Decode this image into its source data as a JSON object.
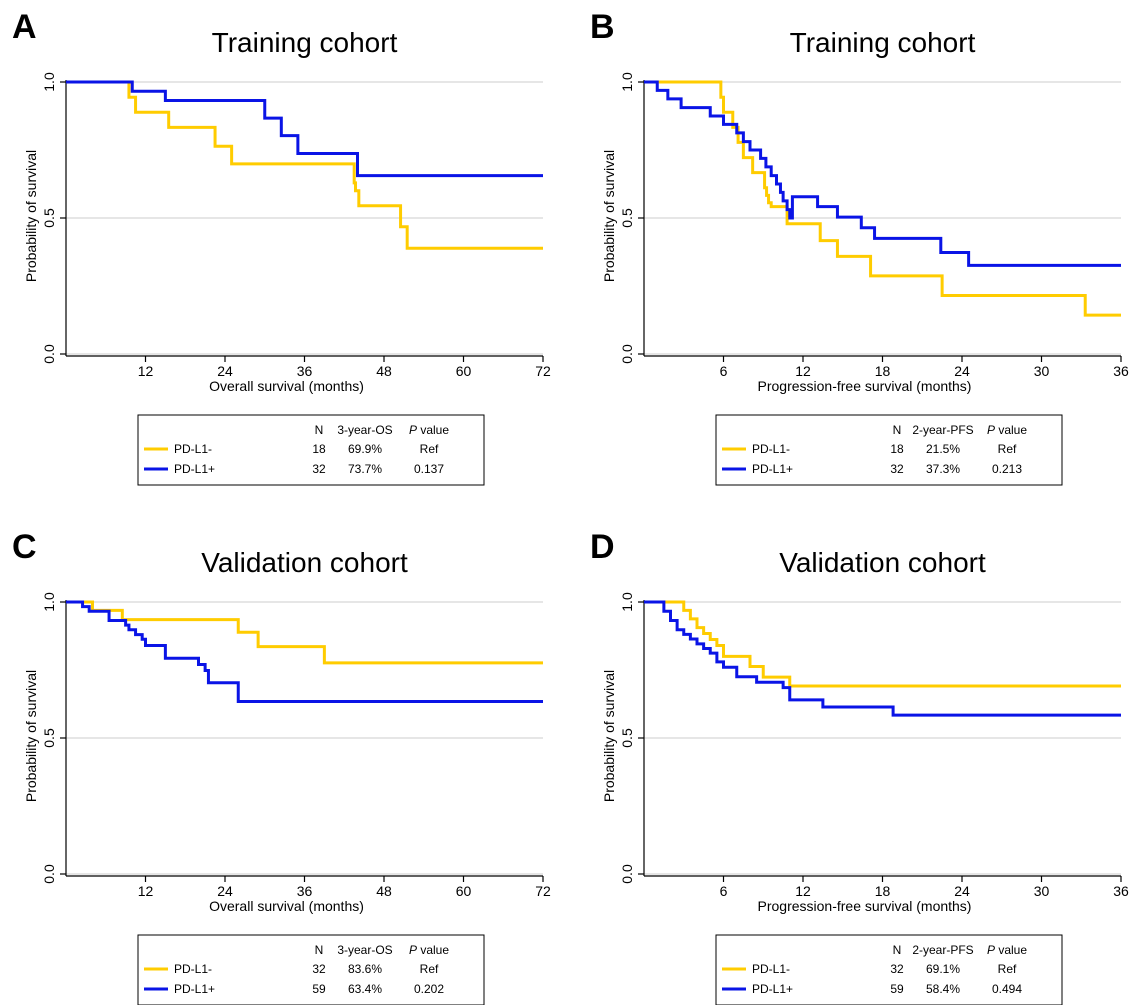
{
  "colors": {
    "negative": "#FFCC00",
    "positive": "#0A14E6",
    "gridline": "#cccccc",
    "axis": "#000000"
  },
  "chart_data": [
    {
      "panel": "A",
      "type": "line",
      "title": "Training cohort",
      "xlabel": "Overall survival (months)",
      "ylabel": "Probability of survival",
      "xlim": [
        0,
        72
      ],
      "ylim": [
        0,
        1
      ],
      "xticks": [
        12,
        24,
        36,
        48,
        60,
        72
      ],
      "yticks": [
        0,
        0.5,
        1
      ],
      "ytick_labels": [
        "0.0",
        "0.5",
        "1.0"
      ],
      "series": [
        {
          "name": "PD-L1-",
          "color": "#FFCC00",
          "x": [
            0,
            9.5,
            10.5,
            15.5,
            22.5,
            25,
            43.5,
            43.7,
            44.2,
            50.5,
            51.5,
            72
          ],
          "y": [
            1.0,
            0.944,
            0.889,
            0.833,
            0.764,
            0.699,
            0.629,
            0.6,
            0.545,
            0.468,
            0.389,
            0.389
          ]
        },
        {
          "name": "PD-L1+",
          "color": "#0A14E6",
          "x": [
            0,
            10,
            15,
            30,
            32.5,
            35,
            44,
            72
          ],
          "y": [
            1.0,
            0.966,
            0.932,
            0.867,
            0.803,
            0.737,
            0.656,
            0.656
          ]
        }
      ],
      "legend": {
        "headers": [
          "N",
          "3-year-OS",
          "P value"
        ],
        "rows": [
          {
            "label": "PD-L1-",
            "n": "18",
            "rate": "69.9%",
            "p": "Ref"
          },
          {
            "label": "PD-L1+",
            "n": "32",
            "rate": "73.7%",
            "p": "0.137"
          }
        ]
      }
    },
    {
      "panel": "B",
      "type": "line",
      "title": "Training cohort",
      "xlabel": "Progression-free survival (months)",
      "ylabel": "Probability of survival",
      "xlim": [
        0,
        36
      ],
      "ylim": [
        0,
        1
      ],
      "xticks": [
        6,
        12,
        18,
        24,
        30,
        36
      ],
      "yticks": [
        0,
        0.5,
        1
      ],
      "ytick_labels": [
        "0.0",
        "0.5",
        "1.0"
      ],
      "series": [
        {
          "name": "PD-L1-",
          "color": "#FFCC00",
          "x": [
            0,
            5.8,
            6.0,
            6.7,
            7.1,
            7.5,
            8.2,
            9.1,
            9.25,
            9.4,
            9.6,
            10.8,
            13.3,
            14.6,
            17.1,
            22.5,
            33.3,
            36
          ],
          "y": [
            1.0,
            0.944,
            0.889,
            0.833,
            0.778,
            0.722,
            0.667,
            0.611,
            0.583,
            0.556,
            0.542,
            0.479,
            0.417,
            0.359,
            0.287,
            0.215,
            0.143,
            0.143
          ]
        },
        {
          "name": "PD-L1+",
          "color": "#0A14E6",
          "x": [
            0,
            1.0,
            1.8,
            2.8,
            5.0,
            6.0,
            7.0,
            7.5,
            8.0,
            8.8,
            9.2,
            9.6,
            10.0,
            10.3,
            10.5,
            10.8,
            11.0,
            11.2,
            13.1,
            14.6,
            16.4,
            17.4,
            22.4,
            24.5,
            36
          ],
          "y": [
            1.0,
            0.969,
            0.938,
            0.906,
            0.875,
            0.844,
            0.813,
            0.781,
            0.75,
            0.719,
            0.688,
            0.656,
            0.625,
            0.594,
            0.563,
            0.531,
            0.5,
            0.578,
            0.542,
            0.503,
            0.464,
            0.425,
            0.373,
            0.326,
            0.326
          ]
        }
      ],
      "legend": {
        "headers": [
          "N",
          "2-year-PFS",
          "P value"
        ],
        "rows": [
          {
            "label": "PD-L1-",
            "n": "18",
            "rate": "21.5%",
            "p": "Ref"
          },
          {
            "label": "PD-L1+",
            "n": "32",
            "rate": "37.3%",
            "p": "0.213"
          }
        ]
      }
    },
    {
      "panel": "C",
      "type": "line",
      "title": "Validation cohort",
      "xlabel": "Overall survival (months)",
      "ylabel": "Probability of survival",
      "xlim": [
        0,
        72
      ],
      "ylim": [
        0,
        1
      ],
      "xticks": [
        12,
        24,
        36,
        48,
        60,
        72
      ],
      "yticks": [
        0,
        0.5,
        1
      ],
      "ytick_labels": [
        "0.0",
        "0.5",
        "1.0"
      ],
      "series": [
        {
          "name": "PD-L1-",
          "color": "#FFCC00",
          "x": [
            0,
            4,
            8.5,
            26,
            29,
            39,
            72
          ],
          "y": [
            1.0,
            0.969,
            0.935,
            0.889,
            0.836,
            0.776,
            0.776
          ]
        },
        {
          "name": "PD-L1+",
          "color": "#0A14E6",
          "x": [
            0,
            2.5,
            3.5,
            6.5,
            9.0,
            9.5,
            10.5,
            11.5,
            12.0,
            15.0,
            20.0,
            21.0,
            21.5,
            26.0,
            72
          ],
          "y": [
            1.0,
            0.983,
            0.966,
            0.932,
            0.915,
            0.898,
            0.88,
            0.863,
            0.84,
            0.793,
            0.77,
            0.748,
            0.703,
            0.634,
            0.634
          ]
        }
      ],
      "legend": {
        "headers": [
          "N",
          "3-year-OS",
          "P value"
        ],
        "rows": [
          {
            "label": "PD-L1-",
            "n": "32",
            "rate": "83.6%",
            "p": "Ref"
          },
          {
            "label": "PD-L1+",
            "n": "59",
            "rate": "63.4%",
            "p": "0.202"
          }
        ]
      }
    },
    {
      "panel": "D",
      "type": "line",
      "title": "Validation cohort",
      "xlabel": "Progression-free survival (months)",
      "ylabel": "Probability of survival",
      "xlim": [
        0,
        36
      ],
      "ylim": [
        0,
        1
      ],
      "xticks": [
        6,
        12,
        18,
        24,
        30,
        36
      ],
      "yticks": [
        0,
        0.5,
        1
      ],
      "ytick_labels": [
        "0.0",
        "0.5",
        "1.0"
      ],
      "series": [
        {
          "name": "PD-L1-",
          "color": "#FFCC00",
          "x": [
            0,
            3.0,
            3.5,
            4.0,
            4.5,
            5.0,
            5.5,
            6.0,
            8.0,
            9.0,
            11.0,
            36
          ],
          "y": [
            1.0,
            0.969,
            0.938,
            0.906,
            0.884,
            0.862,
            0.84,
            0.8,
            0.763,
            0.724,
            0.691,
            0.691
          ]
        },
        {
          "name": "PD-L1+",
          "color": "#0A14E6",
          "x": [
            0,
            1.5,
            2.0,
            2.5,
            3.0,
            3.5,
            4.0,
            4.5,
            5.0,
            5.5,
            6.0,
            7.0,
            8.5,
            10.5,
            11.0,
            13.5,
            18.8,
            36
          ],
          "y": [
            1.0,
            0.966,
            0.932,
            0.898,
            0.881,
            0.864,
            0.846,
            0.829,
            0.812,
            0.78,
            0.76,
            0.725,
            0.705,
            0.685,
            0.64,
            0.614,
            0.584,
            0.584
          ]
        }
      ],
      "legend": {
        "headers": [
          "N",
          "2-year-PFS",
          "P value"
        ],
        "rows": [
          {
            "label": "PD-L1-",
            "n": "32",
            "rate": "69.1%",
            "p": "Ref"
          },
          {
            "label": "PD-L1+",
            "n": "59",
            "rate": "58.4%",
            "p": "0.494"
          }
        ]
      }
    }
  ]
}
